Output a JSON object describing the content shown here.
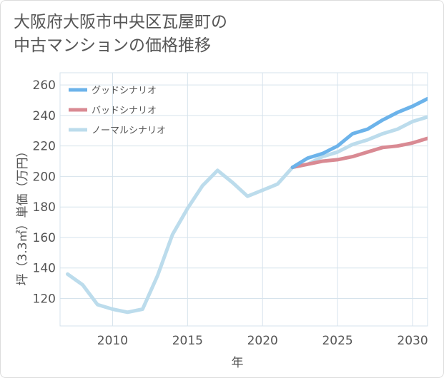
{
  "title_lines": [
    "大阪府大阪市中央区瓦屋町の",
    "中古マンションの価格推移"
  ],
  "chart_data": {
    "type": "line",
    "xlabel": "年",
    "ylabel": "坪（3.3㎡）単価（万円）",
    "xlim": [
      2006.5,
      2031
    ],
    "ylim": [
      102,
      268
    ],
    "xticks": [
      2010,
      2015,
      2020,
      2025,
      2030
    ],
    "yticks": [
      120,
      140,
      160,
      180,
      200,
      220,
      240,
      260
    ],
    "grid": true,
    "legend_position": "top-left",
    "series": [
      {
        "name": "グッドシナリオ",
        "color": "#6cb3ea",
        "x": [
          2022,
          2023,
          2024,
          2025,
          2026,
          2027,
          2028,
          2029,
          2030,
          2031
        ],
        "y": [
          206,
          212,
          215,
          220,
          228,
          231,
          237,
          242,
          246,
          251
        ]
      },
      {
        "name": "バッドシナリオ",
        "color": "#d98a93",
        "x": [
          2022,
          2023,
          2024,
          2025,
          2026,
          2027,
          2028,
          2029,
          2030,
          2031
        ],
        "y": [
          206,
          208,
          210,
          211,
          213,
          216,
          219,
          220,
          222,
          225
        ]
      },
      {
        "name": "ノーマルシナリオ",
        "color": "#bcdcec",
        "x": [
          2007,
          2008,
          2009,
          2010,
          2011,
          2012,
          2013,
          2014,
          2015,
          2016,
          2017,
          2018,
          2019,
          2020,
          2021,
          2022,
          2023,
          2024,
          2025,
          2026,
          2027,
          2028,
          2029,
          2030,
          2031
        ],
        "y": [
          136,
          129,
          116,
          113,
          111,
          113,
          135,
          162,
          179,
          194,
          204,
          196,
          187,
          191,
          195,
          206,
          208,
          213,
          216,
          221,
          224,
          228,
          231,
          236,
          239
        ]
      }
    ]
  }
}
